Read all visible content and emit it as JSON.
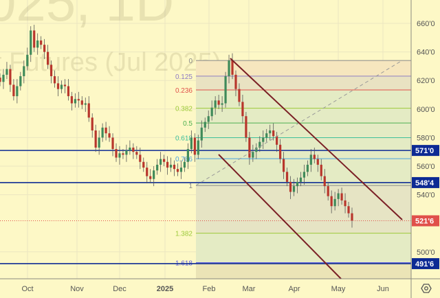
{
  "watermark": {
    "line1": "025, 1D",
    "line2": "t Futures (Jul 2025)"
  },
  "chart_data": {
    "type": "candlestick",
    "title": "",
    "x_ticks": [
      "Oct",
      "Nov",
      "Dec",
      "2025",
      "Feb",
      "Mar",
      "Apr",
      "May",
      "Jun"
    ],
    "y_ticks": [
      "660'0",
      "640'0",
      "620'0",
      "600'0",
      "580'0",
      "560'0",
      "540'0",
      "500'0"
    ],
    "y_tick_values": [
      660,
      640,
      620,
      600,
      580,
      560,
      540,
      500
    ],
    "ylim": [
      478,
      674
    ],
    "closes": [
      619,
      624,
      628,
      617,
      609,
      616,
      623,
      630,
      638,
      655,
      643,
      648,
      645,
      640,
      631,
      623,
      618,
      614,
      617,
      616,
      609,
      604,
      607,
      606,
      603,
      604,
      594,
      585,
      573,
      580,
      587,
      583,
      580,
      572,
      566,
      569,
      568,
      571,
      573,
      570,
      568,
      563,
      559,
      553,
      551,
      557,
      561,
      565,
      563,
      559,
      561,
      558,
      556,
      559,
      563,
      572,
      580,
      568,
      578,
      587,
      591,
      595,
      601,
      606,
      603,
      604,
      623,
      634,
      624,
      614,
      605,
      595,
      580,
      566,
      570,
      573,
      577,
      580,
      583,
      585,
      581,
      575,
      565,
      556,
      549,
      542,
      546,
      549,
      552,
      556,
      561,
      568,
      565,
      561,
      553,
      546,
      539,
      532,
      537,
      541,
      536,
      532,
      527,
      522
    ],
    "horizontal_levels": [
      {
        "price": 571.0,
        "label": "571'0",
        "color": "#0d2a94"
      },
      {
        "price": 548.5,
        "label": "548'4",
        "color": "#0d2a94"
      },
      {
        "price": 491.75,
        "label": "491'6",
        "color": "#0d2a94"
      }
    ],
    "last_price": {
      "price": 521.75,
      "label": "521'6",
      "color": "#e0504a"
    },
    "fibonacci": {
      "high": 634,
      "low": 546.5,
      "levels": [
        {
          "ratio": 0,
          "label": "0",
          "color": "#888888"
        },
        {
          "ratio": 0.125,
          "label": "0.125",
          "color": "#8e7cc3"
        },
        {
          "ratio": 0.236,
          "label": "0.236",
          "color": "#e0504a"
        },
        {
          "ratio": 0.382,
          "label": "0.382",
          "color": "#9cc93a"
        },
        {
          "ratio": 0.5,
          "label": "0.5",
          "color": "#4caf50"
        },
        {
          "ratio": 0.618,
          "label": "0.618",
          "color": "#3dbf9a"
        },
        {
          "ratio": 0.786,
          "label": "0.786",
          "color": "#4aa3df"
        },
        {
          "ratio": 1,
          "label": "1",
          "color": "#888888"
        },
        {
          "ratio": 1.382,
          "label": "1.382",
          "color": "#9cc93a"
        },
        {
          "ratio": 1.618,
          "label": "1.618",
          "color": "#5c5ce0"
        }
      ]
    },
    "colors": {
      "up": "#3f8a5a",
      "down": "#b8362c",
      "channel": "#7a1f25",
      "background": "#fdf8c6"
    }
  },
  "settings_icon": "gear-icon"
}
